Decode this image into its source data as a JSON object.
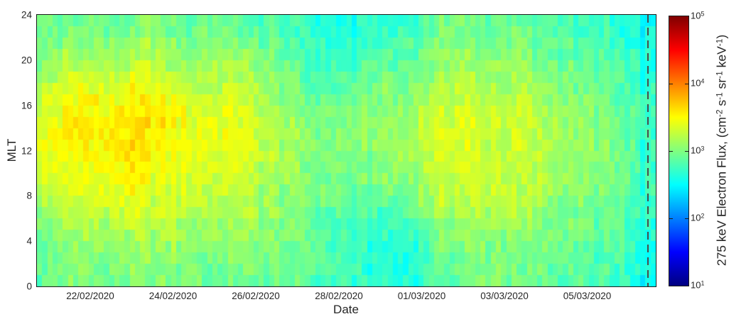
{
  "chart_data": {
    "type": "heatmap",
    "title": "",
    "xlabel": "Date",
    "ylabel": "MLT",
    "x_ticks": [
      "22/02/2020",
      "24/02/2020",
      "26/02/2020",
      "28/02/2020",
      "01/03/2020",
      "03/03/2020",
      "05/03/2020"
    ],
    "y_ticks": [
      "0",
      "4",
      "8",
      "12",
      "16",
      "20",
      "24"
    ],
    "y_range": [
      0,
      24
    ],
    "x_range": [
      "20/02/2020 ~18:00",
      "06/03/2020 ~16:00"
    ],
    "grid_on": false,
    "colorbar": {
      "label_plain": "275 keV Electron Flux, (cm^-2 s^-1 sr^-1 keV^-1)",
      "label_segments": [
        {
          "t": "275 keV Electron Flux, (cm"
        },
        {
          "t": "-2",
          "sup": true
        },
        {
          "t": " s"
        },
        {
          "t": "-1",
          "sup": true
        },
        {
          "t": " sr"
        },
        {
          "t": "-1",
          "sup": true
        },
        {
          "t": " keV"
        },
        {
          "t": "-1",
          "sup": true
        },
        {
          "t": ")"
        }
      ],
      "scale": "log10",
      "min": 10,
      "max": 100000,
      "ticks": [
        {
          "base": "10",
          "exp": "1"
        },
        {
          "base": "10",
          "exp": "2"
        },
        {
          "base": "10",
          "exp": "3"
        },
        {
          "base": "10",
          "exp": "4"
        },
        {
          "base": "10",
          "exp": "5"
        }
      ],
      "colormap": "jet",
      "colormap_stops": [
        {
          "frac": 0.0,
          "color": "#000080"
        },
        {
          "frac": 0.125,
          "color": "#0000ff"
        },
        {
          "frac": 0.375,
          "color": "#00ffff"
        },
        {
          "frac": 0.625,
          "color": "#ffff00"
        },
        {
          "frac": 0.875,
          "color": "#ff0000"
        },
        {
          "frac": 1.0,
          "color": "#800000"
        }
      ]
    },
    "event_line": {
      "style": "dashed",
      "color": "#4a4a4a",
      "x_frac": 0.987
    },
    "grid": {
      "description": "log10 electron flux, coarse grid; rows = MLT ascending (bottom row first, 2-MLT bins centred 1..23); columns = time ascending, 12-hour bins from 20/02/2020 18:00 to 06/03/2020 18:00",
      "bin_hours": 12,
      "n_time_bins": 30,
      "mlt_row_centers": [
        1,
        3,
        5,
        7,
        9,
        11,
        13,
        15,
        17,
        19,
        21,
        23
      ],
      "render_bins": {
        "time": 120,
        "mlt": 24
      },
      "log10_flux": [
        [
          2.9,
          3.0,
          3.0,
          2.9,
          3.0,
          3.0,
          3.0,
          3.0,
          2.9,
          3.0,
          2.9,
          2.9,
          2.9,
          2.8,
          2.8,
          2.7,
          2.6,
          2.6,
          2.7,
          2.9,
          2.9,
          3.0,
          3.0,
          2.9,
          2.9,
          2.9,
          2.8,
          2.8,
          2.7,
          2.5
        ],
        [
          2.9,
          3.0,
          3.1,
          3.0,
          3.1,
          3.1,
          3.1,
          3.0,
          3.0,
          3.0,
          3.0,
          3.0,
          2.9,
          2.9,
          2.8,
          2.7,
          2.6,
          2.6,
          2.7,
          2.9,
          3.0,
          3.0,
          3.0,
          3.0,
          3.0,
          2.9,
          2.9,
          2.8,
          2.8,
          2.5
        ],
        [
          3.0,
          3.1,
          3.2,
          3.1,
          3.2,
          3.2,
          3.2,
          3.1,
          3.1,
          3.1,
          3.1,
          3.0,
          3.0,
          2.9,
          2.8,
          2.7,
          2.7,
          2.7,
          2.8,
          3.0,
          3.1,
          3.1,
          3.1,
          3.1,
          3.0,
          3.0,
          2.9,
          2.9,
          2.8,
          2.6
        ],
        [
          3.1,
          3.2,
          3.3,
          3.3,
          3.4,
          3.3,
          3.3,
          3.2,
          3.2,
          3.2,
          3.2,
          3.1,
          3.0,
          2.9,
          2.9,
          2.8,
          2.8,
          2.9,
          3.0,
          3.2,
          3.2,
          3.2,
          3.2,
          3.2,
          3.1,
          3.0,
          3.0,
          2.9,
          2.8,
          2.7
        ],
        [
          3.3,
          3.4,
          3.4,
          3.4,
          3.5,
          3.4,
          3.4,
          3.3,
          3.3,
          3.3,
          3.2,
          3.1,
          3.1,
          3.0,
          3.0,
          2.9,
          3.0,
          3.0,
          3.1,
          3.3,
          3.3,
          3.3,
          3.3,
          3.2,
          3.2,
          3.1,
          3.0,
          3.0,
          2.9,
          2.7
        ],
        [
          3.4,
          3.4,
          3.5,
          3.5,
          3.6,
          3.5,
          3.4,
          3.4,
          3.3,
          3.4,
          3.3,
          3.2,
          3.1,
          3.0,
          3.0,
          3.0,
          3.0,
          3.1,
          3.2,
          3.3,
          3.4,
          3.3,
          3.3,
          3.3,
          3.2,
          3.1,
          3.1,
          3.0,
          2.9,
          2.7
        ],
        [
          3.4,
          3.5,
          3.6,
          3.5,
          3.6,
          3.5,
          3.5,
          3.4,
          3.4,
          3.4,
          3.3,
          3.2,
          3.1,
          3.0,
          3.0,
          3.0,
          3.1,
          3.1,
          3.2,
          3.3,
          3.4,
          3.3,
          3.3,
          3.3,
          3.2,
          3.1,
          3.1,
          3.0,
          2.9,
          2.7
        ],
        [
          3.4,
          3.5,
          3.6,
          3.5,
          3.6,
          3.6,
          3.5,
          3.4,
          3.4,
          3.4,
          3.3,
          3.2,
          3.1,
          3.0,
          3.0,
          3.0,
          3.0,
          3.1,
          3.2,
          3.3,
          3.4,
          3.3,
          3.3,
          3.3,
          3.2,
          3.1,
          3.0,
          3.0,
          2.9,
          2.7
        ],
        [
          3.3,
          3.4,
          3.5,
          3.4,
          3.5,
          3.5,
          3.4,
          3.3,
          3.3,
          3.3,
          3.2,
          3.1,
          3.0,
          2.9,
          2.9,
          2.9,
          3.0,
          3.0,
          3.1,
          3.2,
          3.3,
          3.2,
          3.2,
          3.2,
          3.1,
          3.0,
          3.0,
          2.9,
          2.8,
          2.7
        ],
        [
          3.1,
          3.2,
          3.3,
          3.2,
          3.3,
          3.3,
          3.2,
          3.1,
          3.2,
          3.2,
          3.1,
          3.0,
          2.9,
          2.8,
          2.8,
          2.8,
          2.9,
          2.9,
          3.0,
          3.1,
          3.2,
          3.1,
          3.1,
          3.1,
          3.0,
          3.0,
          2.9,
          2.9,
          2.8,
          2.6
        ],
        [
          3.0,
          3.1,
          3.1,
          3.0,
          3.1,
          3.2,
          3.1,
          3.0,
          3.1,
          3.1,
          3.0,
          2.9,
          2.8,
          2.8,
          2.7,
          2.7,
          2.8,
          2.8,
          2.9,
          3.0,
          3.1,
          3.0,
          3.0,
          3.0,
          2.9,
          2.9,
          2.8,
          2.8,
          2.7,
          2.6
        ],
        [
          2.9,
          2.9,
          3.0,
          2.9,
          2.9,
          3.0,
          2.9,
          2.9,
          3.0,
          2.9,
          2.8,
          2.8,
          2.7,
          2.7,
          2.6,
          2.6,
          2.7,
          2.7,
          2.8,
          2.9,
          3.0,
          2.9,
          2.9,
          2.9,
          2.8,
          2.8,
          2.7,
          2.7,
          2.6,
          2.5
        ]
      ]
    }
  },
  "style": {
    "text_color": "#262626",
    "axis_color": "#1a1a1a",
    "background": "#ffffff"
  }
}
